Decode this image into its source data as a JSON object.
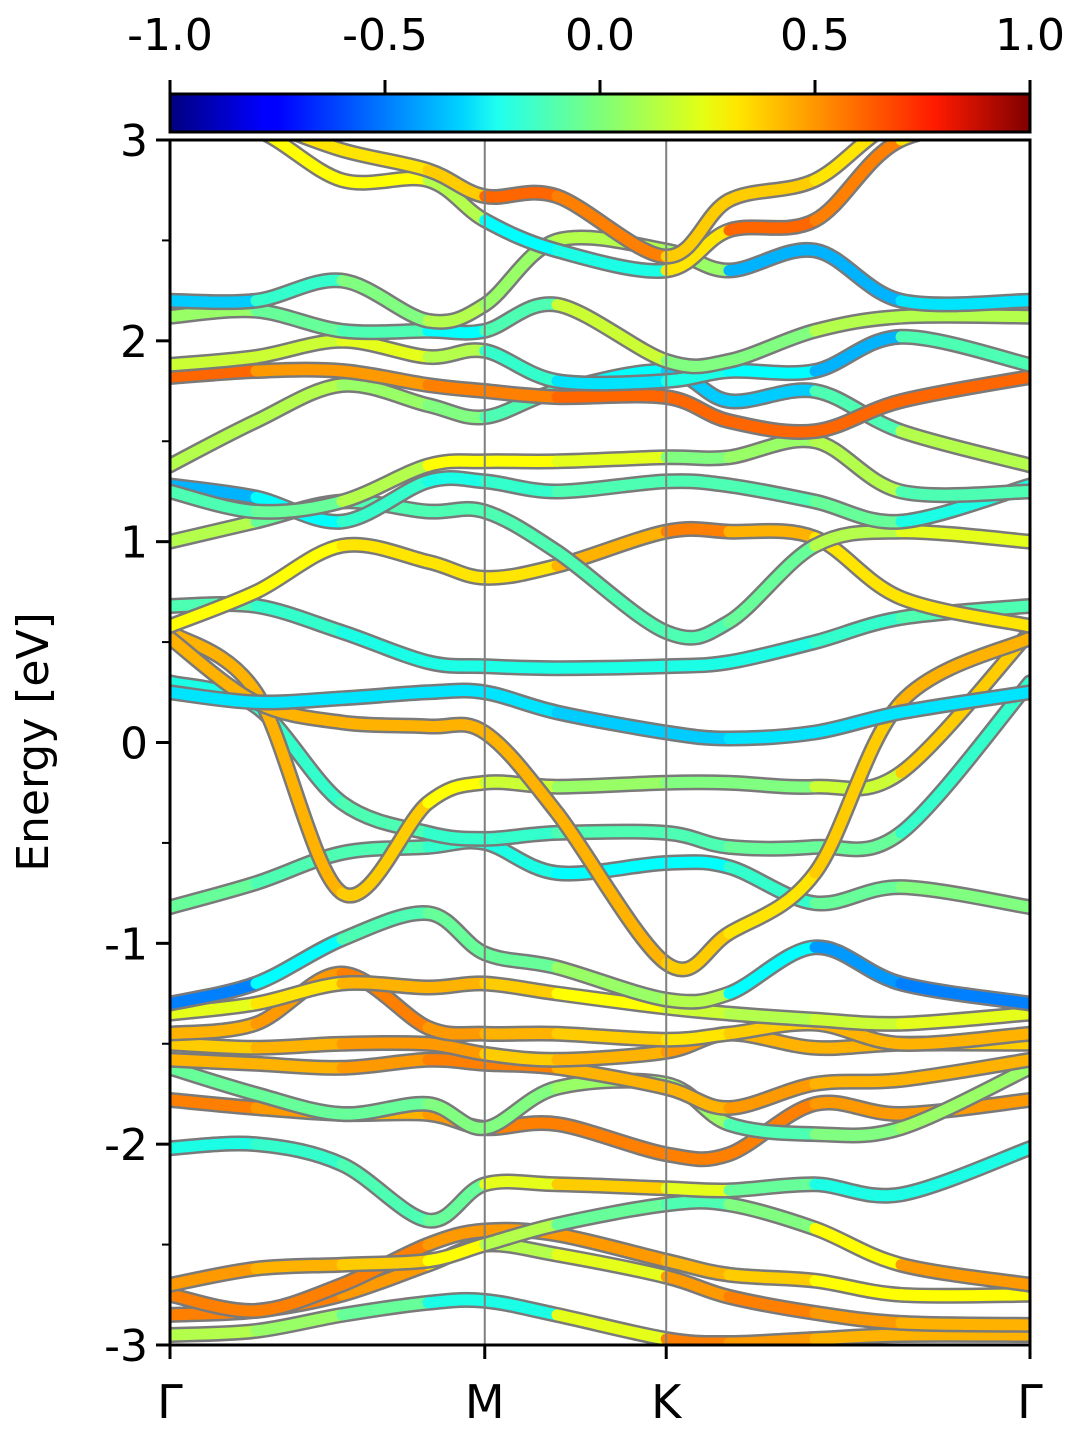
{
  "chart_data": {
    "type": "line",
    "title": "",
    "xlabel": "",
    "ylabel": "Energy [eV]",
    "ylim": [
      -3,
      3
    ],
    "y_ticks": [
      "-3",
      "-2",
      "-1",
      "0",
      "1",
      "2",
      "3"
    ],
    "y_minor_ticks": [
      -2.5,
      -1.5,
      -0.5,
      0.5,
      1.5,
      2.5
    ],
    "x_ticks": [
      "Γ",
      "M",
      "K",
      "Γ"
    ],
    "x_tick_positions": [
      0,
      0.366,
      0.577,
      1.0
    ],
    "grid": false,
    "colorbar": {
      "range": [
        -1.0,
        1.0
      ],
      "tick_labels": [
        "-1.0",
        "-0.5",
        "0.0",
        "0.5",
        "1.0"
      ],
      "colormap": "jet",
      "placement": "top"
    },
    "band_outline_color": "#7a7a7a",
    "kpath_line_color": "#7f7f7f",
    "series": [
      {
        "x": [
          0,
          0.1,
          0.2,
          0.3,
          0.366,
          0.45,
          0.577,
          0.65,
          0.75,
          0.85,
          1.0
        ],
        "y": [
          -2.95,
          -2.93,
          -2.85,
          -2.79,
          -2.78,
          -2.85,
          -2.97,
          -2.99,
          -2.97,
          -2.95,
          -2.95
        ],
        "c": [
          0.1,
          0.1,
          0.0,
          -0.1,
          -0.3,
          -0.1,
          0.5,
          0.5,
          0.4,
          0.4,
          0.4
        ]
      },
      {
        "x": [
          0,
          0.1,
          0.2,
          0.3,
          0.366,
          0.45,
          0.577,
          0.65,
          0.75,
          0.85,
          1.0
        ],
        "y": [
          -2.85,
          -2.83,
          -2.75,
          -2.6,
          -2.5,
          -2.55,
          -2.66,
          -2.76,
          -2.84,
          -2.89,
          -2.9
        ],
        "c": [
          0.5,
          0.5,
          0.5,
          0.4,
          0.2,
          0.0,
          0.4,
          0.5,
          0.5,
          0.4,
          0.4
        ]
      },
      {
        "x": [
          0,
          0.1,
          0.2,
          0.3,
          0.366,
          0.45,
          0.577,
          0.65,
          0.75,
          0.85,
          1.0
        ],
        "y": [
          -2.75,
          -2.83,
          -2.7,
          -2.5,
          -2.43,
          -2.45,
          -2.58,
          -2.65,
          -2.68,
          -2.75,
          -2.75
        ],
        "c": [
          0.5,
          0.5,
          0.5,
          0.5,
          0.4,
          0.5,
          0.4,
          0.4,
          0.3,
          0.2,
          0.3
        ]
      },
      {
        "x": [
          0,
          0.1,
          0.2,
          0.3,
          0.366,
          0.45,
          0.577,
          0.65,
          0.75,
          0.85,
          1.0
        ],
        "y": [
          -2.7,
          -2.62,
          -2.6,
          -2.58,
          -2.5,
          -2.4,
          -2.3,
          -2.3,
          -2.42,
          -2.6,
          -2.7
        ],
        "c": [
          0.5,
          0.4,
          0.4,
          0.3,
          0.2,
          0.0,
          -0.1,
          -0.1,
          0.1,
          0.4,
          0.5
        ]
      },
      {
        "x": [
          0,
          0.1,
          0.2,
          0.3,
          0.366,
          0.45,
          0.577,
          0.65,
          0.75,
          0.85,
          1.0
        ],
        "y": [
          -2.02,
          -2.0,
          -2.1,
          -2.38,
          -2.2,
          -2.2,
          -2.22,
          -2.23,
          -2.2,
          -2.25,
          -2.02
        ],
        "c": [
          -0.2,
          -0.2,
          -0.1,
          -0.1,
          0.0,
          0.4,
          0.3,
          0.1,
          -0.2,
          -0.2,
          -0.2
        ]
      },
      {
        "x": [
          0,
          0.1,
          0.2,
          0.3,
          0.366,
          0.45,
          0.577,
          0.65,
          0.75,
          0.85,
          1.0
        ],
        "y": [
          -1.78,
          -1.82,
          -1.85,
          -1.85,
          -1.92,
          -1.9,
          -2.05,
          -2.05,
          -1.8,
          -1.85,
          -1.78
        ],
        "c": [
          0.5,
          0.5,
          0.4,
          0.4,
          0.5,
          0.5,
          0.5,
          0.5,
          0.5,
          0.4,
          0.5
        ]
      },
      {
        "x": [
          0,
          0.1,
          0.2,
          0.3,
          0.366,
          0.45,
          0.577,
          0.65,
          0.75,
          0.85,
          1.0
        ],
        "y": [
          -1.62,
          -1.75,
          -1.85,
          -1.8,
          -1.92,
          -1.72,
          -1.7,
          -1.9,
          -1.95,
          -1.92,
          -1.62
        ],
        "c": [
          0.0,
          -0.1,
          0.0,
          -0.1,
          0.1,
          -0.1,
          0.2,
          -0.1,
          -0.1,
          0.1,
          0.0
        ]
      },
      {
        "x": [
          0,
          0.1,
          0.2,
          0.3,
          0.366,
          0.45,
          0.577,
          0.65,
          0.75,
          0.85,
          1.0
        ],
        "y": [
          -1.58,
          -1.6,
          -1.62,
          -1.58,
          -1.6,
          -1.62,
          -1.72,
          -1.82,
          -1.7,
          -1.68,
          -1.58
        ],
        "c": [
          0.4,
          0.4,
          0.4,
          0.5,
          0.5,
          0.5,
          0.3,
          0.5,
          0.4,
          0.4,
          0.4
        ]
      },
      {
        "x": [
          0,
          0.1,
          0.2,
          0.3,
          0.366,
          0.45,
          0.577,
          0.65,
          0.75,
          0.85,
          1.0
        ],
        "y": [
          -1.5,
          -1.52,
          -1.5,
          -1.5,
          -1.55,
          -1.58,
          -1.54,
          -1.45,
          -1.52,
          -1.5,
          -1.5
        ],
        "c": [
          0.3,
          0.4,
          0.4,
          0.5,
          0.4,
          0.3,
          0.5,
          0.4,
          0.4,
          0.4,
          0.3
        ]
      },
      {
        "x": [
          0,
          0.1,
          0.2,
          0.3,
          0.366,
          0.45,
          0.577,
          0.65,
          0.75,
          0.85,
          1.0
        ],
        "y": [
          -1.45,
          -1.4,
          -1.15,
          -1.42,
          -1.45,
          -1.45,
          -1.48,
          -1.45,
          -1.4,
          -1.5,
          -1.45
        ],
        "c": [
          0.4,
          0.4,
          0.5,
          0.5,
          0.4,
          0.4,
          0.3,
          0.3,
          0.4,
          0.4,
          0.4
        ]
      },
      {
        "x": [
          0,
          0.1,
          0.2,
          0.3,
          0.366,
          0.45,
          0.577,
          0.65,
          0.75,
          0.85,
          1.0
        ],
        "y": [
          -1.35,
          -1.3,
          -1.2,
          -1.22,
          -1.2,
          -1.25,
          -1.32,
          -1.35,
          -1.38,
          -1.4,
          -1.35
        ],
        "c": [
          0.2,
          0.2,
          0.4,
          0.4,
          0.4,
          0.3,
          0.2,
          0.1,
          0.1,
          0.2,
          0.2
        ]
      },
      {
        "x": [
          0,
          0.1,
          0.2,
          0.3,
          0.366,
          0.45,
          0.577,
          0.65,
          0.75,
          0.85,
          1.0
        ],
        "y": [
          -1.3,
          -1.2,
          -0.98,
          -0.85,
          -1.05,
          -1.12,
          -1.28,
          -1.25,
          -1.02,
          -1.2,
          -1.3
        ],
        "c": [
          -0.6,
          -0.4,
          -0.1,
          -0.1,
          0.0,
          -0.1,
          0.2,
          0.0,
          -0.5,
          -0.4,
          -0.6
        ]
      },
      {
        "x": [
          0,
          0.1,
          0.2,
          0.3,
          0.366,
          0.45,
          0.577,
          0.65,
          0.75,
          0.85,
          1.0
        ],
        "y": [
          -0.82,
          -0.7,
          -0.55,
          -0.52,
          -0.5,
          -0.65,
          -0.6,
          -0.62,
          -0.8,
          -0.72,
          -0.82
        ],
        "c": [
          0.0,
          -0.1,
          -0.1,
          -0.1,
          -0.2,
          -0.2,
          -0.3,
          -0.2,
          -0.1,
          0.0,
          0.0
        ]
      },
      {
        "x": [
          0,
          0.1,
          0.2,
          0.3,
          0.366,
          0.45,
          0.577,
          0.65,
          0.75,
          0.85,
          1.0
        ],
        "y": [
          0.3,
          0.18,
          -0.3,
          -0.45,
          -0.48,
          -0.45,
          -0.45,
          -0.52,
          -0.52,
          -0.45,
          0.3
        ],
        "c": [
          -0.2,
          -0.2,
          -0.1,
          -0.1,
          -0.2,
          -0.1,
          -0.1,
          -0.1,
          0.0,
          -0.1,
          -0.2
        ]
      },
      {
        "x": [
          0,
          0.1,
          0.2,
          0.3,
          0.366,
          0.45,
          0.577,
          0.65,
          0.75,
          0.85,
          1.0
        ],
        "y": [
          0.55,
          0.25,
          -0.75,
          -0.3,
          -0.2,
          -0.22,
          -0.2,
          -0.2,
          -0.22,
          -0.15,
          0.55
        ],
        "c": [
          0.4,
          0.4,
          0.4,
          0.3,
          0.2,
          0.1,
          0.0,
          0.0,
          0.0,
          0.3,
          0.4
        ]
      },
      {
        "x": [
          0,
          0.1,
          0.2,
          0.3,
          0.366,
          0.45,
          0.577,
          0.65,
          0.75,
          0.85,
          1.0
        ],
        "y": [
          0.52,
          0.2,
          0.1,
          0.08,
          0.05,
          -0.35,
          -1.1,
          -0.95,
          -0.65,
          0.2,
          0.52
        ],
        "c": [
          0.4,
          0.4,
          0.4,
          0.4,
          0.4,
          0.4,
          0.4,
          0.3,
          0.3,
          0.4,
          0.4
        ]
      },
      {
        "x": [
          0,
          0.1,
          0.2,
          0.3,
          0.366,
          0.45,
          0.577,
          0.65,
          0.75,
          0.85,
          1.0
        ],
        "y": [
          0.25,
          0.2,
          0.22,
          0.25,
          0.25,
          0.15,
          0.05,
          0.02,
          0.05,
          0.15,
          0.25
        ],
        "c": [
          -0.3,
          -0.3,
          -0.3,
          -0.3,
          -0.3,
          -0.3,
          -0.4,
          -0.3,
          -0.3,
          -0.3,
          -0.3
        ]
      },
      {
        "x": [
          0,
          0.1,
          0.2,
          0.3,
          0.366,
          0.45,
          0.577,
          0.65,
          0.75,
          0.85,
          1.0
        ],
        "y": [
          0.68,
          0.68,
          0.55,
          0.4,
          0.38,
          0.37,
          0.38,
          0.4,
          0.5,
          0.62,
          0.68
        ],
        "c": [
          -0.1,
          -0.1,
          -0.2,
          -0.2,
          -0.2,
          -0.2,
          -0.2,
          -0.2,
          -0.2,
          -0.1,
          -0.1
        ]
      },
      {
        "x": [
          0,
          0.1,
          0.2,
          0.3,
          0.366,
          0.45,
          0.577,
          0.65,
          0.75,
          0.85,
          1.0
        ],
        "y": [
          0.58,
          0.75,
          0.98,
          0.9,
          0.82,
          0.88,
          1.05,
          1.05,
          1.02,
          0.72,
          0.58
        ],
        "c": [
          0.3,
          0.2,
          0.3,
          0.3,
          0.3,
          0.3,
          0.5,
          0.5,
          0.3,
          0.3,
          0.3
        ]
      },
      {
        "x": [
          0,
          0.1,
          0.2,
          0.3,
          0.366,
          0.45,
          0.577,
          0.65,
          0.75,
          0.85,
          1.0
        ],
        "y": [
          1.0,
          1.1,
          1.2,
          1.15,
          1.15,
          0.95,
          0.55,
          0.6,
          0.98,
          1.05,
          1.0
        ],
        "c": [
          0.2,
          0.0,
          -0.1,
          -0.1,
          -0.1,
          -0.1,
          -0.1,
          -0.1,
          0.0,
          0.2,
          0.2
        ]
      },
      {
        "x": [
          0,
          0.1,
          0.2,
          0.3,
          0.366,
          0.45,
          0.577,
          0.65,
          0.75,
          0.85,
          1.0
        ],
        "y": [
          1.28,
          1.22,
          1.1,
          1.3,
          1.3,
          1.25,
          1.3,
          1.28,
          1.2,
          1.1,
          1.28
        ],
        "c": [
          -0.4,
          -0.4,
          -0.1,
          -0.2,
          -0.2,
          -0.1,
          -0.1,
          -0.1,
          -0.1,
          0.0,
          -0.4
        ]
      },
      {
        "x": [
          0,
          0.1,
          0.2,
          0.3,
          0.366,
          0.45,
          0.577,
          0.65,
          0.75,
          0.85,
          1.0
        ],
        "y": [
          1.25,
          1.15,
          1.2,
          1.38,
          1.4,
          1.4,
          1.42,
          1.42,
          1.5,
          1.25,
          1.25
        ],
        "c": [
          -0.1,
          -0.1,
          0.0,
          0.2,
          0.3,
          0.2,
          0.2,
          -0.2,
          0.3,
          -0.1,
          -0.1
        ]
      },
      {
        "x": [
          0,
          0.1,
          0.2,
          0.3,
          0.366,
          0.45,
          0.577,
          0.65,
          0.75,
          0.85,
          1.0
        ],
        "y": [
          1.38,
          1.6,
          1.78,
          1.68,
          1.62,
          1.75,
          1.85,
          1.7,
          1.75,
          1.55,
          1.38
        ],
        "c": [
          0.1,
          0.1,
          0.1,
          0.0,
          0.0,
          -0.2,
          -0.3,
          -0.4,
          -0.3,
          0.1,
          0.1
        ]
      },
      {
        "x": [
          0,
          0.1,
          0.2,
          0.3,
          0.366,
          0.45,
          0.577,
          0.65,
          0.75,
          0.85,
          1.0
        ],
        "y": [
          1.82,
          1.85,
          1.85,
          1.78,
          1.75,
          1.72,
          1.72,
          1.6,
          1.55,
          1.7,
          1.82
        ],
        "c": [
          0.6,
          0.5,
          0.4,
          0.5,
          0.5,
          0.5,
          0.6,
          0.5,
          0.6,
          0.5,
          0.6
        ]
      },
      {
        "x": [
          0,
          0.1,
          0.2,
          0.3,
          0.366,
          0.45,
          0.577,
          0.65,
          0.75,
          0.85,
          1.0
        ],
        "y": [
          1.88,
          1.92,
          2.0,
          1.92,
          1.95,
          1.8,
          1.8,
          1.85,
          1.85,
          2.02,
          1.88
        ],
        "c": [
          0.2,
          0.1,
          0.2,
          0.2,
          0.0,
          -0.3,
          -0.3,
          -0.1,
          -0.4,
          -0.4,
          0.2
        ]
      },
      {
        "x": [
          0,
          0.1,
          0.2,
          0.3,
          0.366,
          0.45,
          0.577,
          0.65,
          0.75,
          0.85,
          1.0
        ],
        "y": [
          2.12,
          2.15,
          2.05,
          2.05,
          2.05,
          2.18,
          1.9,
          1.9,
          2.05,
          2.12,
          2.12
        ],
        "c": [
          0.1,
          0.0,
          -0.1,
          -0.1,
          -0.4,
          0.2,
          0.1,
          -0.1,
          0.1,
          0.1,
          0.1
        ]
      },
      {
        "x": [
          0,
          0.1,
          0.2,
          0.3,
          0.366,
          0.45,
          0.577,
          0.65,
          0.75,
          0.85,
          1.0
        ],
        "y": [
          2.2,
          2.2,
          2.3,
          2.1,
          2.18,
          2.5,
          2.45,
          2.35,
          2.45,
          2.2,
          2.2
        ],
        "c": [
          -0.4,
          -0.3,
          0.0,
          0.0,
          0.2,
          -0.1,
          0.3,
          -0.2,
          -0.6,
          -0.2,
          -0.4
        ]
      },
      {
        "x": [
          0,
          0.1,
          0.2,
          0.3,
          0.366,
          0.45,
          0.577,
          0.65,
          0.75,
          0.85,
          1.0
        ],
        "y": [
          3.1,
          3.05,
          2.8,
          2.8,
          2.6,
          2.45,
          2.35,
          2.55,
          2.6,
          3.0,
          3.1
        ],
        "c": [
          0.2,
          0.2,
          0.3,
          0.2,
          0.0,
          -0.5,
          0.1,
          0.5,
          0.6,
          0.4,
          0.2
        ]
      },
      {
        "x": [
          0,
          0.1,
          0.2,
          0.3,
          0.366,
          0.45,
          0.577,
          0.65,
          0.75,
          0.85,
          1.0
        ],
        "y": [
          3.2,
          3.1,
          2.95,
          2.85,
          2.72,
          2.72,
          2.42,
          2.7,
          2.8,
          3.1,
          3.2
        ],
        "c": [
          0.3,
          0.3,
          0.3,
          0.3,
          0.4,
          0.7,
          0.3,
          0.4,
          0.3,
          0.3,
          0.3
        ]
      }
    ]
  }
}
